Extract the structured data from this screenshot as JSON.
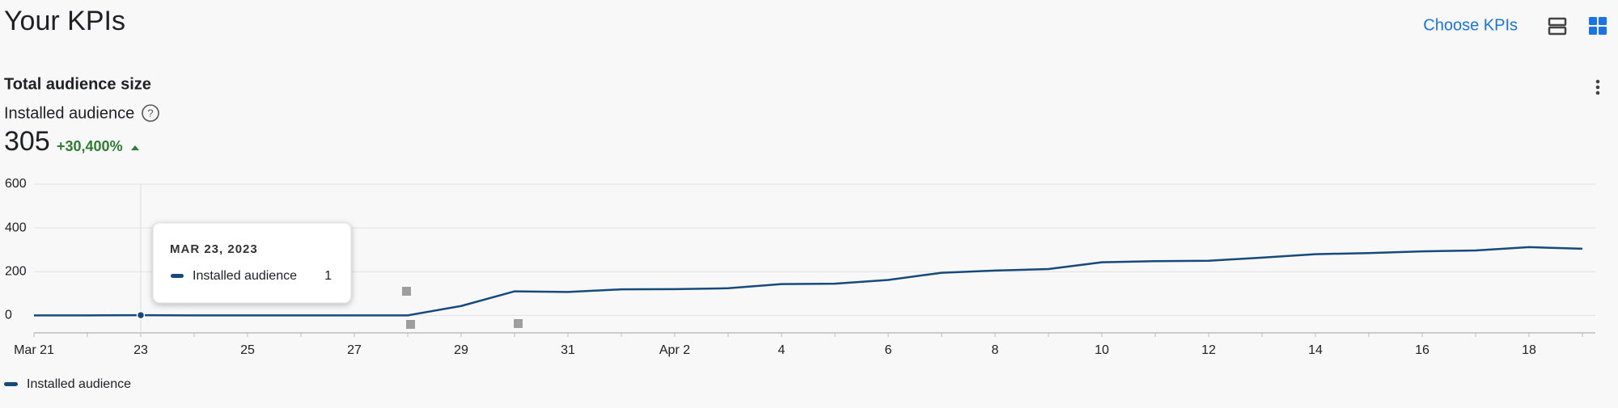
{
  "header": {
    "title": "Your KPIs",
    "choose_kpis": "Choose KPIs"
  },
  "card": {
    "title": "Total audience size",
    "metric": "Installed audience",
    "value": 305,
    "change": "+30,400%"
  },
  "tooltip": {
    "date": "MAR 23, 2023"
  },
  "chart_data": {
    "type": "line",
    "categories": [
      "Mar 21",
      null,
      "23",
      null,
      "25",
      null,
      "27",
      null,
      "29",
      null,
      "31",
      null,
      "Apr 2",
      null,
      "4",
      null,
      "6",
      null,
      "8",
      null,
      "10",
      null,
      "12",
      null,
      "14",
      null,
      "16",
      null,
      "18",
      null
    ],
    "series": [
      {
        "name": "Installed audience",
        "color": "#174a7c",
        "values": [
          0,
          0,
          1,
          0,
          0,
          0,
          0,
          0,
          43,
          110,
          107,
          119,
          120,
          124,
          143,
          145,
          162,
          195,
          205,
          212,
          243,
          248,
          250,
          264,
          280,
          285,
          293,
          297,
          312,
          305
        ]
      }
    ],
    "ylim": [
      -80,
      600
    ],
    "yticks": [
      0,
      200,
      400,
      600
    ],
    "grid": true
  }
}
